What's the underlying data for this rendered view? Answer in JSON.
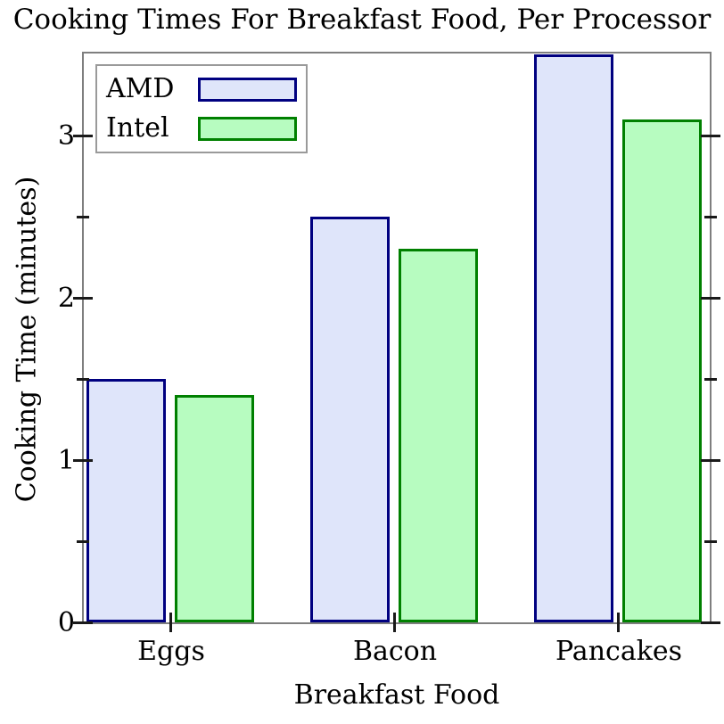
{
  "chart_data": {
    "type": "bar",
    "title": "Cooking Times For Breakfast Food, Per Processor",
    "xlabel": "Breakfast Food",
    "ylabel": "Cooking Time (minutes)",
    "categories": [
      "Eggs",
      "Bacon",
      "Pancakes"
    ],
    "series": [
      {
        "name": "AMD",
        "values": [
          1.5,
          2.5,
          3.5
        ],
        "fill_color": "#dfe5fa",
        "line_color": "#000080"
      },
      {
        "name": "Intel",
        "values": [
          1.4,
          2.3,
          3.1
        ],
        "fill_color": "#b7fcc0",
        "line_color": "#008000"
      }
    ],
    "ylim": [
      0,
      3.5
    ],
    "y_major_ticks": [
      0,
      1,
      2,
      3
    ],
    "y_minor_ticks": [
      0.5,
      1.5,
      2.5
    ],
    "y_tick_labels": [
      "0",
      "1",
      "2",
      "3"
    ],
    "grid": false,
    "legend_position": "top-left",
    "spine_color": "#7f7f7f",
    "tick_color": "#1a1a1a"
  }
}
